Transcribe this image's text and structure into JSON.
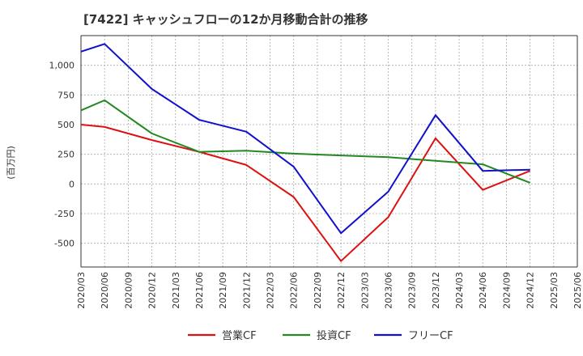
{
  "chart_data": {
    "type": "line",
    "title": "[7422]  キャッシュフローの12か月移動合計の推移",
    "ylabel": "(百万円)",
    "xlabel": "",
    "ylim": [
      -700,
      1250
    ],
    "yticks": [
      -500,
      -250,
      0,
      250,
      500,
      750,
      1000
    ],
    "ytick_labels": [
      "-500",
      "-250",
      "0",
      "250",
      "500",
      "750",
      "1,000"
    ],
    "x_ticks": [
      "2020/03",
      "2020/06",
      "2020/09",
      "2020/12",
      "2021/03",
      "2021/06",
      "2021/09",
      "2021/12",
      "2022/03",
      "2022/06",
      "2022/09",
      "2022/12",
      "2023/03",
      "2023/06",
      "2023/09",
      "2023/12",
      "2024/03",
      "2024/06",
      "2024/09",
      "2024/12",
      "2025/03",
      "2025/06"
    ],
    "grid": true,
    "legend_position": "bottom",
    "series": [
      {
        "name": "営業CF",
        "color": "#dd1111",
        "points": [
          {
            "x": "2020/03",
            "y": 500
          },
          {
            "x": "2020/06",
            "y": 480
          },
          {
            "x": "2020/12",
            "y": 370
          },
          {
            "x": "2021/06",
            "y": 270
          },
          {
            "x": "2021/12",
            "y": 160
          },
          {
            "x": "2022/06",
            "y": -110
          },
          {
            "x": "2022/12",
            "y": -650
          },
          {
            "x": "2023/06",
            "y": -280
          },
          {
            "x": "2023/12",
            "y": 385
          },
          {
            "x": "2024/06",
            "y": -50
          },
          {
            "x": "2024/12",
            "y": 110
          }
        ]
      },
      {
        "name": "投資CF",
        "color": "#228822",
        "points": [
          {
            "x": "2020/03",
            "y": 620
          },
          {
            "x": "2020/06",
            "y": 705
          },
          {
            "x": "2020/12",
            "y": 425
          },
          {
            "x": "2021/06",
            "y": 270
          },
          {
            "x": "2021/12",
            "y": 280
          },
          {
            "x": "2022/06",
            "y": 255
          },
          {
            "x": "2022/12",
            "y": 240
          },
          {
            "x": "2023/06",
            "y": 225
          },
          {
            "x": "2023/12",
            "y": 195
          },
          {
            "x": "2024/06",
            "y": 165
          },
          {
            "x": "2024/12",
            "y": 10
          }
        ]
      },
      {
        "name": "フリーCF",
        "color": "#1111cc",
        "points": [
          {
            "x": "2020/03",
            "y": 1115
          },
          {
            "x": "2020/06",
            "y": 1180
          },
          {
            "x": "2020/12",
            "y": 800
          },
          {
            "x": "2021/06",
            "y": 540
          },
          {
            "x": "2021/12",
            "y": 440
          },
          {
            "x": "2022/06",
            "y": 145
          },
          {
            "x": "2022/12",
            "y": -415
          },
          {
            "x": "2023/06",
            "y": -65
          },
          {
            "x": "2023/12",
            "y": 580
          },
          {
            "x": "2024/06",
            "y": 110
          },
          {
            "x": "2024/12",
            "y": 120
          }
        ]
      }
    ]
  }
}
